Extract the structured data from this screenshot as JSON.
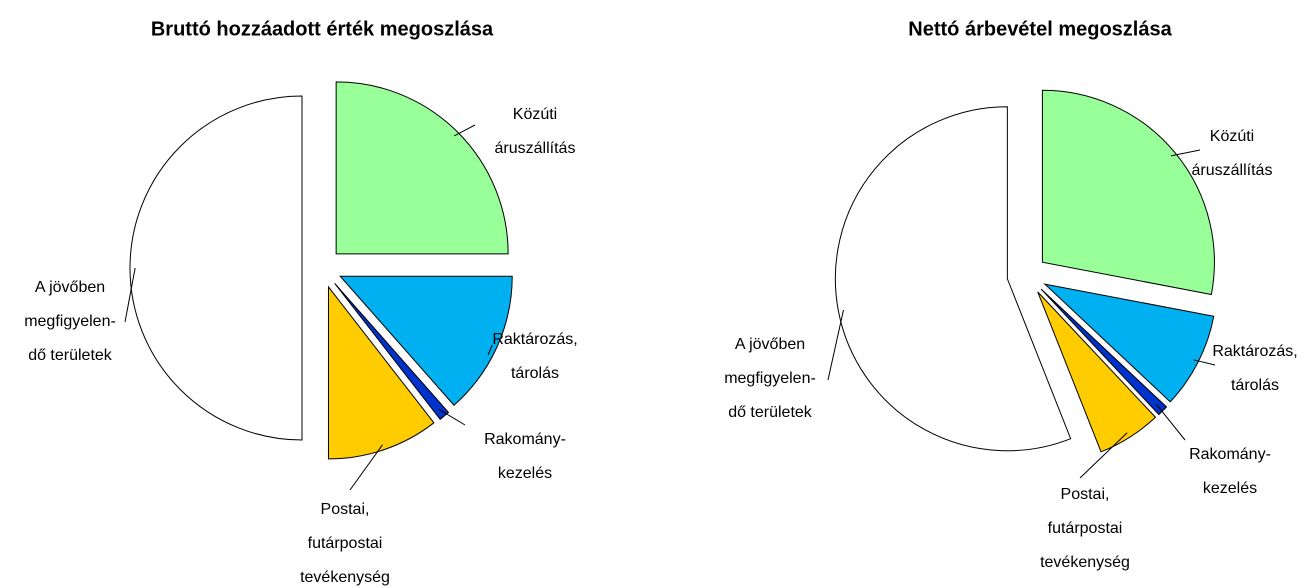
{
  "chart_data": [
    {
      "type": "pie",
      "title": "Bruttó hozzáadott érték megoszlása",
      "categories": [
        [
          "Közúti",
          "áruszállítás"
        ],
        [
          "Raktározás,",
          "tárolás"
        ],
        [
          "Rakomány-",
          "kezelés"
        ],
        [
          "Postai,",
          "futárpostai",
          "tevékenység"
        ],
        [
          "A jövőben",
          "megfigyelen-",
          "dő területek"
        ]
      ],
      "values": [
        25,
        13.5,
        1,
        10.5,
        50
      ],
      "colors": [
        "#99ff99",
        "#00b0f0",
        "#0033cc",
        "#ffcc00",
        "#ffffff"
      ]
    },
    {
      "type": "pie",
      "title": "Nettó árbevétel megoszlása",
      "categories": [
        [
          "Közúti",
          "áruszállítás"
        ],
        [
          "Raktározás,",
          "tárolás"
        ],
        [
          "Rakomány-",
          "kezelés"
        ],
        [
          "Postai,",
          "futárpostai",
          "tevékenység"
        ],
        [
          "A jövőben",
          "megfigyelen-",
          "dő területek"
        ]
      ],
      "values": [
        28,
        9,
        1,
        6,
        56
      ],
      "colors": [
        "#99ff99",
        "#00b0f0",
        "#0033cc",
        "#ffcc00",
        "#ffffff"
      ]
    }
  ]
}
